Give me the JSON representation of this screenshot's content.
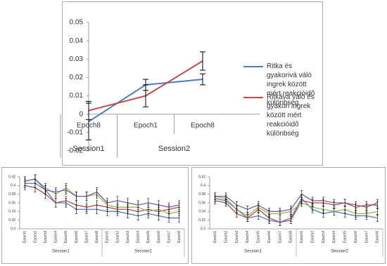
{
  "chart_data": [
    {
      "type": "line",
      "legend": "right",
      "groups": [
        {
          "name": "Session1",
          "categories": [
            "Epoch8"
          ]
        },
        {
          "name": "Session2",
          "categories": [
            "Epoch1",
            "Epoch8"
          ]
        }
      ],
      "ylim": [
        -0.02,
        0.05
      ],
      "yticks": [
        -0.02,
        -0.01,
        0,
        0.01,
        0.02,
        0.03,
        0.04,
        0.05
      ],
      "series": [
        {
          "name": "Ritka és gyakorivá váló ingrek között mért reakcióidő különbség",
          "color": "#4a7ebb",
          "values": [
            -0.004,
            0.016,
            0.019
          ],
          "errors": [
            0.01,
            0.003,
            0.003
          ]
        },
        {
          "name": "Ritkává váló és gyakori ingrek között mért reakcióidő különbség",
          "color": "#be4b48",
          "values": [
            0.002,
            0.01,
            0.029
          ],
          "errors": [
            0.005,
            0.006,
            0.005
          ]
        }
      ]
    },
    {
      "type": "line",
      "groups": [
        {
          "name": "Session1",
          "categories": [
            "Epoch1",
            "Epoch2",
            "Epoch3",
            "Epoch4",
            "Epoch5",
            "Epoch6",
            "Epoch7",
            "Epoch8"
          ]
        },
        {
          "name": "Session2",
          "categories": [
            "Epoch1",
            "Epoch2",
            "Epoch3",
            "Epoch4",
            "Epoch5",
            "Epoch6",
            "Epoch7",
            "Epoch8"
          ]
        }
      ],
      "ylim": [
        0.3,
        0.42
      ],
      "yticks": [
        0.3,
        0.32,
        0.34,
        0.36,
        0.38,
        0.4,
        0.42
      ],
      "series": [
        {
          "color": "#4a7ebb",
          "values": [
            0.405,
            0.405,
            0.39,
            0.36,
            0.36,
            0.345,
            0.345,
            0.345,
            0.34,
            0.34,
            0.335,
            0.33,
            0.335,
            0.33,
            0.325,
            0.325
          ],
          "errors": [
            0.01,
            0.01,
            0.01,
            0.01,
            0.01,
            0.01,
            0.01,
            0.01,
            0.01,
            0.01,
            0.01,
            0.01,
            0.01,
            0.01,
            0.01,
            0.01
          ]
        },
        {
          "color": "#be4b48",
          "values": [
            0.4,
            0.395,
            0.38,
            0.36,
            0.365,
            0.355,
            0.35,
            0.355,
            0.35,
            0.345,
            0.345,
            0.34,
            0.345,
            0.34,
            0.345,
            0.35
          ],
          "errors": [
            0.01,
            0.01,
            0.01,
            0.01,
            0.01,
            0.01,
            0.01,
            0.01,
            0.01,
            0.01,
            0.01,
            0.01,
            0.01,
            0.01,
            0.01,
            0.01
          ]
        },
        {
          "color": "#98b954",
          "values": [
            0.41,
            0.415,
            0.395,
            0.38,
            0.395,
            0.375,
            0.375,
            0.38,
            0.355,
            0.35,
            0.35,
            0.35,
            0.34,
            0.345,
            0.335,
            0.34
          ],
          "errors": [
            0.01,
            0.01,
            0.01,
            0.01,
            0.01,
            0.01,
            0.01,
            0.01,
            0.01,
            0.01,
            0.01,
            0.01,
            0.01,
            0.01,
            0.01,
            0.01
          ]
        },
        {
          "color": "#7d60a0",
          "values": [
            0.41,
            0.415,
            0.39,
            0.385,
            0.39,
            0.375,
            0.375,
            0.385,
            0.36,
            0.365,
            0.36,
            0.355,
            0.36,
            0.355,
            0.35,
            0.355
          ],
          "errors": [
            0.01,
            0.01,
            0.01,
            0.01,
            0.01,
            0.01,
            0.01,
            0.01,
            0.01,
            0.01,
            0.01,
            0.01,
            0.01,
            0.01,
            0.01,
            0.01
          ]
        }
      ]
    },
    {
      "type": "line",
      "groups": [
        {
          "name": "Session1",
          "categories": [
            "Epoch1",
            "Epoch2",
            "Epoch3",
            "Epoch4",
            "Epoch5",
            "Epoch6",
            "Epoch7",
            "Epoch8"
          ]
        },
        {
          "name": "Session2",
          "categories": [
            "Epoch1",
            "Epoch2",
            "Epoch3",
            "Epoch4",
            "Epoch5",
            "Epoch6",
            "Epoch7",
            "Epoch8"
          ]
        }
      ],
      "ylim": [
        0.3,
        0.42
      ],
      "yticks": [
        0.3,
        0.32,
        0.34,
        0.36,
        0.38,
        0.4,
        0.42
      ],
      "series": [
        {
          "color": "#4a7ebb",
          "values": [
            0.37,
            0.365,
            0.345,
            0.325,
            0.33,
            0.32,
            0.315,
            0.325,
            0.37,
            0.345,
            0.335,
            0.34,
            0.335,
            0.33,
            0.33,
            0.325
          ],
          "errors": [
            0.008,
            0.008,
            0.008,
            0.008,
            0.008,
            0.008,
            0.008,
            0.008,
            0.008,
            0.008,
            0.008,
            0.008,
            0.008,
            0.008,
            0.008,
            0.008
          ]
        },
        {
          "color": "#be4b48",
          "values": [
            0.365,
            0.36,
            0.335,
            0.325,
            0.345,
            0.325,
            0.315,
            0.32,
            0.365,
            0.36,
            0.36,
            0.355,
            0.36,
            0.35,
            0.355,
            0.355
          ],
          "errors": [
            0.008,
            0.008,
            0.008,
            0.008,
            0.008,
            0.008,
            0.008,
            0.008,
            0.008,
            0.008,
            0.008,
            0.008,
            0.008,
            0.008,
            0.008,
            0.008
          ]
        },
        {
          "color": "#98b954",
          "values": [
            0.375,
            0.37,
            0.345,
            0.33,
            0.35,
            0.335,
            0.335,
            0.34,
            0.36,
            0.35,
            0.345,
            0.34,
            0.345,
            0.335,
            0.335,
            0.34
          ],
          "errors": [
            0.008,
            0.008,
            0.008,
            0.008,
            0.008,
            0.008,
            0.008,
            0.008,
            0.008,
            0.008,
            0.008,
            0.008,
            0.008,
            0.008,
            0.008,
            0.008
          ]
        },
        {
          "color": "#7d60a0",
          "values": [
            0.375,
            0.375,
            0.355,
            0.345,
            0.355,
            0.34,
            0.34,
            0.345,
            0.38,
            0.365,
            0.365,
            0.36,
            0.36,
            0.355,
            0.35,
            0.36
          ],
          "errors": [
            0.008,
            0.008,
            0.008,
            0.008,
            0.008,
            0.008,
            0.008,
            0.008,
            0.008,
            0.008,
            0.008,
            0.008,
            0.008,
            0.008,
            0.008,
            0.008
          ]
        }
      ]
    }
  ]
}
